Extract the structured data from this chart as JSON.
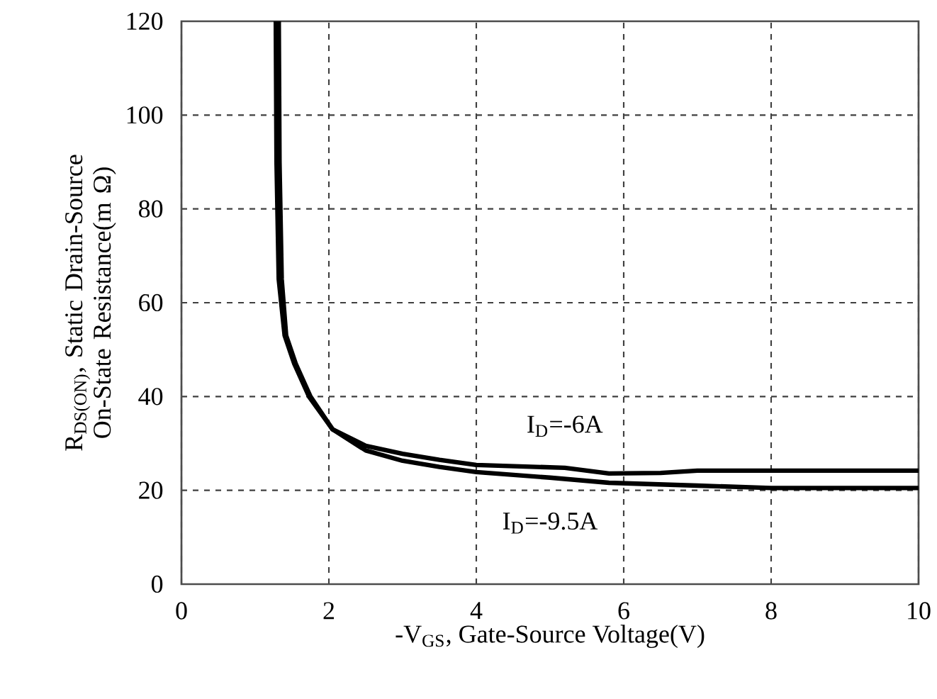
{
  "chart_data": {
    "type": "line",
    "xlabel": "-V$_{GS}$, Gate-Source Voltage(V)",
    "ylabel": "R$_{DS(ON)}$, Static Drain-Source On-State Resistance(m Ω)",
    "xlim": [
      0,
      10
    ],
    "ylim": [
      0,
      120
    ],
    "xticks": [
      0,
      2,
      4,
      6,
      8,
      10
    ],
    "yticks": [
      0,
      20,
      40,
      60,
      80,
      100,
      120
    ],
    "grid": true,
    "legend": false,
    "marker": "none",
    "line_style": "solid",
    "series": [
      {
        "name": "I$_{D}$=-6A",
        "color": "#000000",
        "x": [
          1.32,
          1.33,
          1.36,
          1.42,
          1.55,
          1.75,
          2.05,
          2.5,
          3,
          3.5,
          4,
          5.2,
          5.8,
          6.5,
          7,
          10
        ],
        "values": [
          120,
          90,
          65,
          53,
          47,
          40,
          33,
          29.5,
          27.8,
          26.5,
          25.4,
          24.8,
          23.6,
          23.7,
          24.2,
          24.2
        ]
      },
      {
        "name": "I$_{D}$=-9.5A",
        "color": "#000000",
        "x": [
          1.28,
          1.29,
          1.32,
          1.4,
          1.53,
          1.73,
          2.05,
          2.5,
          3,
          3.5,
          4,
          5,
          5.8,
          7,
          8,
          10
        ],
        "values": [
          120,
          90,
          65,
          53,
          47,
          40,
          33,
          28.5,
          26.3,
          25,
          23.9,
          22.7,
          21.6,
          21,
          20.5,
          20.5
        ]
      }
    ]
  }
}
